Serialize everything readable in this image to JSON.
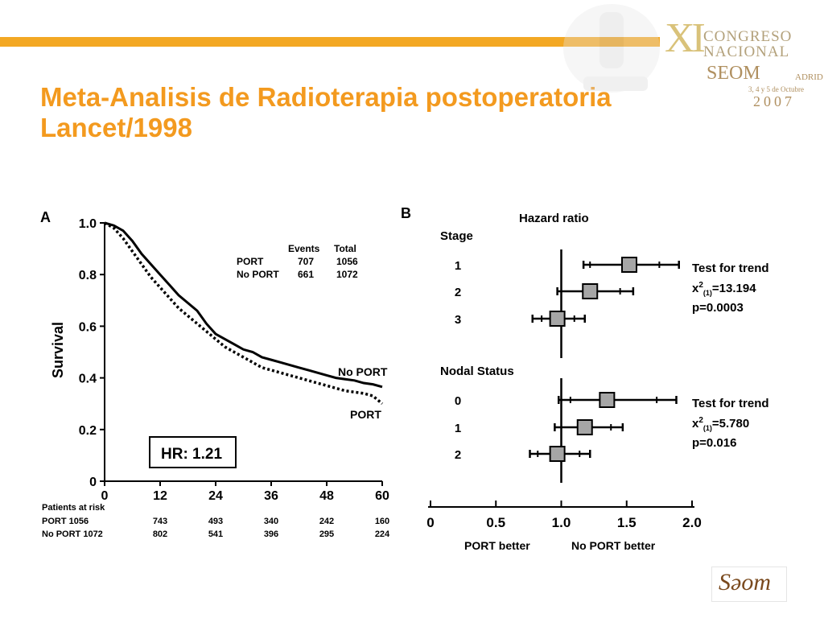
{
  "slide": {
    "title_line1": "Meta-Analisis de Radioterapia postoperatoria",
    "title_line2": "Lancet/1998",
    "bar_color": "#f3a823",
    "title_color": "#f39a1f"
  },
  "congress": {
    "roman": "XI",
    "line1": "CONGRESO",
    "line2": "NACIONAL",
    "seom": "SEOM",
    "city": "ADRID",
    "dates": "3, 4 y 5 de Octubre",
    "year": "2007"
  },
  "logo": {
    "text": "Sǝom"
  },
  "chart_data": [
    {
      "type": "line",
      "panel_label": "A",
      "ylabel": "Survival",
      "xlim": [
        0,
        60
      ],
      "ylim": [
        0,
        1.0
      ],
      "x_ticks": [
        "0",
        "12",
        "24",
        "36",
        "48",
        "60"
      ],
      "y_ticks": [
        "0",
        "0.2",
        "0.4",
        "0.6",
        "0.8",
        "1.0"
      ],
      "legend_table": {
        "headers": [
          "",
          "Events",
          "Total"
        ],
        "rows": [
          [
            "PORT",
            "707",
            "1056"
          ],
          [
            "No PORT",
            "661",
            "1072"
          ]
        ]
      },
      "hr_box": "HR: 1.21",
      "series": [
        {
          "name": "No PORT",
          "style": "solid",
          "x": [
            0,
            2,
            4,
            6,
            8,
            10,
            12,
            14,
            16,
            18,
            20,
            22,
            24,
            26,
            28,
            30,
            32,
            34,
            36,
            38,
            40,
            42,
            44,
            46,
            48,
            50,
            52,
            54,
            56,
            58,
            60
          ],
          "y": [
            1.0,
            0.99,
            0.97,
            0.93,
            0.88,
            0.84,
            0.8,
            0.76,
            0.72,
            0.69,
            0.66,
            0.61,
            0.57,
            0.55,
            0.53,
            0.51,
            0.5,
            0.48,
            0.47,
            0.46,
            0.45,
            0.44,
            0.43,
            0.42,
            0.41,
            0.4,
            0.395,
            0.39,
            0.38,
            0.375,
            0.365
          ]
        },
        {
          "name": "PORT",
          "style": "dotted",
          "x": [
            0,
            2,
            4,
            6,
            8,
            10,
            12,
            14,
            16,
            18,
            20,
            22,
            24,
            26,
            28,
            30,
            32,
            34,
            36,
            38,
            40,
            42,
            44,
            46,
            48,
            50,
            52,
            54,
            56,
            58,
            60
          ],
          "y": [
            1.0,
            0.98,
            0.94,
            0.89,
            0.84,
            0.79,
            0.75,
            0.71,
            0.67,
            0.64,
            0.61,
            0.58,
            0.55,
            0.52,
            0.5,
            0.48,
            0.46,
            0.44,
            0.43,
            0.42,
            0.41,
            0.4,
            0.39,
            0.38,
            0.37,
            0.36,
            0.35,
            0.345,
            0.34,
            0.33,
            0.3
          ]
        }
      ],
      "series_labels": [
        "No PORT",
        "PORT"
      ],
      "risk_table": {
        "header": "Patients at risk",
        "rows": [
          {
            "label": "PORT 1056",
            "values": [
              "743",
              "493",
              "340",
              "242",
              "160"
            ]
          },
          {
            "label": "No PORT 1072",
            "values": [
              "802",
              "541",
              "396",
              "295",
              "224"
            ]
          }
        ]
      }
    },
    {
      "type": "scatter",
      "subtype": "forest",
      "panel_label": "B",
      "title": "Hazard ratio",
      "xlim": [
        0,
        2.0
      ],
      "x_ticks": [
        "0",
        "0.5",
        "1.0",
        "1.5",
        "2.0"
      ],
      "reference_line": 1.0,
      "xlabel_left": "PORT better",
      "xlabel_right": "No PORT better",
      "groups": [
        {
          "name": "Stage",
          "test_label": "Test for trend",
          "test_stat": "x²(1)=13.194",
          "test_p": "p=0.0003",
          "items": [
            {
              "label": "1",
              "hr": 1.52,
              "ci": [
                1.17,
                1.9
              ],
              "inner": [
                1.22,
                1.75
              ]
            },
            {
              "label": "2",
              "hr": 1.22,
              "ci": [
                0.97,
                1.55
              ],
              "inner": [
                1.0,
                1.45
              ]
            },
            {
              "label": "3",
              "hr": 0.97,
              "ci": [
                0.78,
                1.18
              ],
              "inner": [
                0.85,
                1.1
              ]
            }
          ]
        },
        {
          "name": "Nodal Status",
          "test_label": "Test for trend",
          "test_stat": "x²(1)=5.780",
          "test_p": "p=0.016",
          "items": [
            {
              "label": "0",
              "hr": 1.35,
              "ci": [
                0.98,
                1.88
              ],
              "inner": [
                1.07,
                1.73
              ]
            },
            {
              "label": "1",
              "hr": 1.18,
              "ci": [
                0.95,
                1.47
              ],
              "inner": [
                1.0,
                1.38
              ]
            },
            {
              "label": "2",
              "hr": 0.97,
              "ci": [
                0.76,
                1.22
              ],
              "inner": [
                0.82,
                1.14
              ]
            }
          ]
        }
      ]
    }
  ]
}
